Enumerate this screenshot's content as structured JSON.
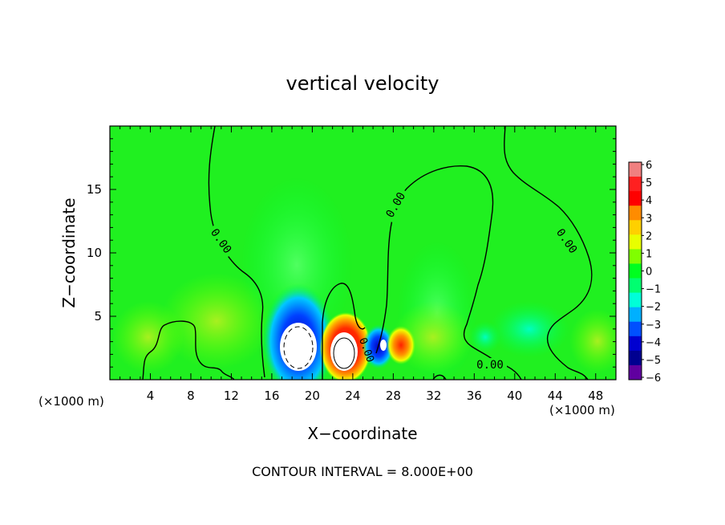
{
  "chart_data": {
    "type": "heatmap",
    "title": "vertical velocity",
    "xlabel": "X−coordinate",
    "ylabel": "Z−coordinate",
    "x_unit": "(×1000 m)",
    "x_unit_right": "(×1000 m)",
    "footer": "CONTOUR INTERVAL = 8.000E+00",
    "xlim": [
      0,
      50
    ],
    "ylim": [
      0,
      20
    ],
    "xticks": [
      4,
      8,
      12,
      16,
      20,
      24,
      28,
      32,
      36,
      40,
      44,
      48
    ],
    "xtick_labels": [
      "4",
      "8",
      "12",
      "16",
      "20",
      "24",
      "28",
      "32",
      "36",
      "40",
      "44",
      "48"
    ],
    "yticks": [
      5,
      10,
      15
    ],
    "ytick_labels": [
      "5",
      "10",
      "15"
    ],
    "colorbar": {
      "levels": [
        6,
        5,
        4,
        3,
        2,
        1,
        0,
        -1,
        -2,
        -3,
        -4,
        -5,
        -6
      ],
      "labels": [
        "6",
        "5",
        "4",
        "3",
        "2",
        "1",
        "0",
        "−1",
        "−2",
        "−3",
        "−4",
        "−5",
        "−6"
      ],
      "colors": [
        "#f08080",
        "#ff2020",
        "#ff0000",
        "#ff8c00",
        "#ffd000",
        "#e8ff00",
        "#80ff00",
        "#00ff20",
        "#00ff70",
        "#00ffd8",
        "#00b0ff",
        "#0050ff",
        "#0000d0",
        "#000090",
        "#6000a0"
      ]
    },
    "contour_labels": [
      "0.00",
      "0.00",
      "0.00",
      "0.00",
      "0.00"
    ],
    "features": [
      {
        "kind": "downdraft",
        "x": 18.5,
        "z": 2.5,
        "w": -6
      },
      {
        "kind": "updraft",
        "x": 22.5,
        "z": 2.3,
        "w": 6
      },
      {
        "kind": "downdraft",
        "x": 26.5,
        "z": 2.8,
        "w": -4
      },
      {
        "kind": "updraft",
        "x": 29,
        "z": 2.6,
        "w": 4
      }
    ]
  }
}
